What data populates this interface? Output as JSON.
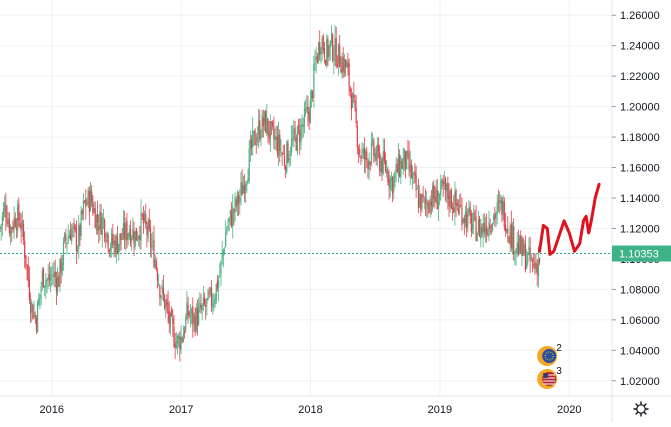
{
  "chart_data": {
    "type": "candlestick",
    "symbol_colors": {
      "up": "#4caf82",
      "down": "#e0404a",
      "projection": "#e0121e",
      "current_price_line": "#26a69a",
      "current_price_label_bg": "#3db387",
      "grid": "#edf0f4",
      "axis_text": "#131722"
    },
    "y_ticks": [
      "1.26000",
      "1.24000",
      "1.22000",
      "1.20000",
      "1.18000",
      "1.16000",
      "1.14000",
      "1.12000",
      "1.10000",
      "1.08000",
      "1.06000",
      "1.04000",
      "1.02000"
    ],
    "ylim": [
      1.01,
      1.27
    ],
    "x_ticks": [
      "2016",
      "2017",
      "2018",
      "2019",
      "2020"
    ],
    "x_tick_positions": [
      2016.0,
      2017.0,
      2018.0,
      2019.0,
      2020.0
    ],
    "xlim": [
      2015.6,
      2020.33
    ],
    "current_price": "1.10353",
    "current_price_value": 1.10353,
    "series_path": [
      [
        2015.6,
        1.12
      ],
      [
        2015.64,
        1.135
      ],
      [
        2015.68,
        1.12
      ],
      [
        2015.72,
        1.128
      ],
      [
        2015.76,
        1.125
      ],
      [
        2015.8,
        1.1
      ],
      [
        2015.84,
        1.07
      ],
      [
        2015.88,
        1.06
      ],
      [
        2015.93,
        1.09
      ],
      [
        2015.97,
        1.085
      ],
      [
        2016.01,
        1.09
      ],
      [
        2016.05,
        1.085
      ],
      [
        2016.1,
        1.11
      ],
      [
        2016.15,
        1.12
      ],
      [
        2016.2,
        1.11
      ],
      [
        2016.25,
        1.135
      ],
      [
        2016.3,
        1.14
      ],
      [
        2016.35,
        1.125
      ],
      [
        2016.4,
        1.125
      ],
      [
        2016.45,
        1.11
      ],
      [
        2016.5,
        1.11
      ],
      [
        2016.55,
        1.115
      ],
      [
        2016.6,
        1.12
      ],
      [
        2016.65,
        1.115
      ],
      [
        2016.7,
        1.125
      ],
      [
        2016.75,
        1.115
      ],
      [
        2016.8,
        1.1
      ],
      [
        2016.84,
        1.08
      ],
      [
        2016.88,
        1.07
      ],
      [
        2016.92,
        1.055
      ],
      [
        2016.97,
        1.045
      ],
      [
        2017.01,
        1.05
      ],
      [
        2017.05,
        1.065
      ],
      [
        2017.1,
        1.06
      ],
      [
        2017.15,
        1.065
      ],
      [
        2017.2,
        1.07
      ],
      [
        2017.25,
        1.075
      ],
      [
        2017.3,
        1.09
      ],
      [
        2017.35,
        1.12
      ],
      [
        2017.4,
        1.13
      ],
      [
        2017.45,
        1.14
      ],
      [
        2017.5,
        1.155
      ],
      [
        2017.55,
        1.175
      ],
      [
        2017.6,
        1.185
      ],
      [
        2017.65,
        1.19
      ],
      [
        2017.7,
        1.18
      ],
      [
        2017.75,
        1.175
      ],
      [
        2017.8,
        1.165
      ],
      [
        2017.85,
        1.175
      ],
      [
        2017.9,
        1.18
      ],
      [
        2017.95,
        1.19
      ],
      [
        2018.0,
        1.2
      ],
      [
        2018.04,
        1.23
      ],
      [
        2018.08,
        1.245
      ],
      [
        2018.12,
        1.235
      ],
      [
        2018.16,
        1.24
      ],
      [
        2018.2,
        1.235
      ],
      [
        2018.24,
        1.23
      ],
      [
        2018.28,
        1.225
      ],
      [
        2018.33,
        1.2
      ],
      [
        2018.38,
        1.17
      ],
      [
        2018.43,
        1.165
      ],
      [
        2018.48,
        1.17
      ],
      [
        2018.53,
        1.165
      ],
      [
        2018.58,
        1.16
      ],
      [
        2018.63,
        1.15
      ],
      [
        2018.68,
        1.16
      ],
      [
        2018.73,
        1.165
      ],
      [
        2018.78,
        1.155
      ],
      [
        2018.83,
        1.14
      ],
      [
        2018.88,
        1.135
      ],
      [
        2018.93,
        1.14
      ],
      [
        2018.98,
        1.14
      ],
      [
        2019.03,
        1.145
      ],
      [
        2019.08,
        1.14
      ],
      [
        2019.13,
        1.135
      ],
      [
        2019.18,
        1.13
      ],
      [
        2019.23,
        1.125
      ],
      [
        2019.28,
        1.12
      ],
      [
        2019.33,
        1.12
      ],
      [
        2019.38,
        1.125
      ],
      [
        2019.43,
        1.13
      ],
      [
        2019.48,
        1.135
      ],
      [
        2019.53,
        1.12
      ],
      [
        2019.58,
        1.11
      ],
      [
        2019.63,
        1.105
      ],
      [
        2019.68,
        1.1
      ],
      [
        2019.73,
        1.095
      ],
      [
        2019.77,
        1.1
      ]
    ],
    "projection": [
      [
        2019.77,
        1.105
      ],
      [
        2019.8,
        1.122
      ],
      [
        2019.83,
        1.12
      ],
      [
        2019.85,
        1.103
      ],
      [
        2019.88,
        1.105
      ],
      [
        2019.92,
        1.115
      ],
      [
        2019.96,
        1.125
      ],
      [
        2020.0,
        1.117
      ],
      [
        2020.04,
        1.105
      ],
      [
        2020.08,
        1.11
      ],
      [
        2020.11,
        1.125
      ],
      [
        2020.13,
        1.128
      ],
      [
        2020.15,
        1.117
      ],
      [
        2020.17,
        1.125
      ],
      [
        2020.2,
        1.14
      ],
      [
        2020.23,
        1.149
      ]
    ],
    "event_badges": [
      {
        "flag": "EU",
        "count": "2",
        "x": 2019.86
      },
      {
        "flag": "US",
        "count": "3",
        "x": 2019.86
      }
    ],
    "settings_icon": "gear-icon"
  }
}
